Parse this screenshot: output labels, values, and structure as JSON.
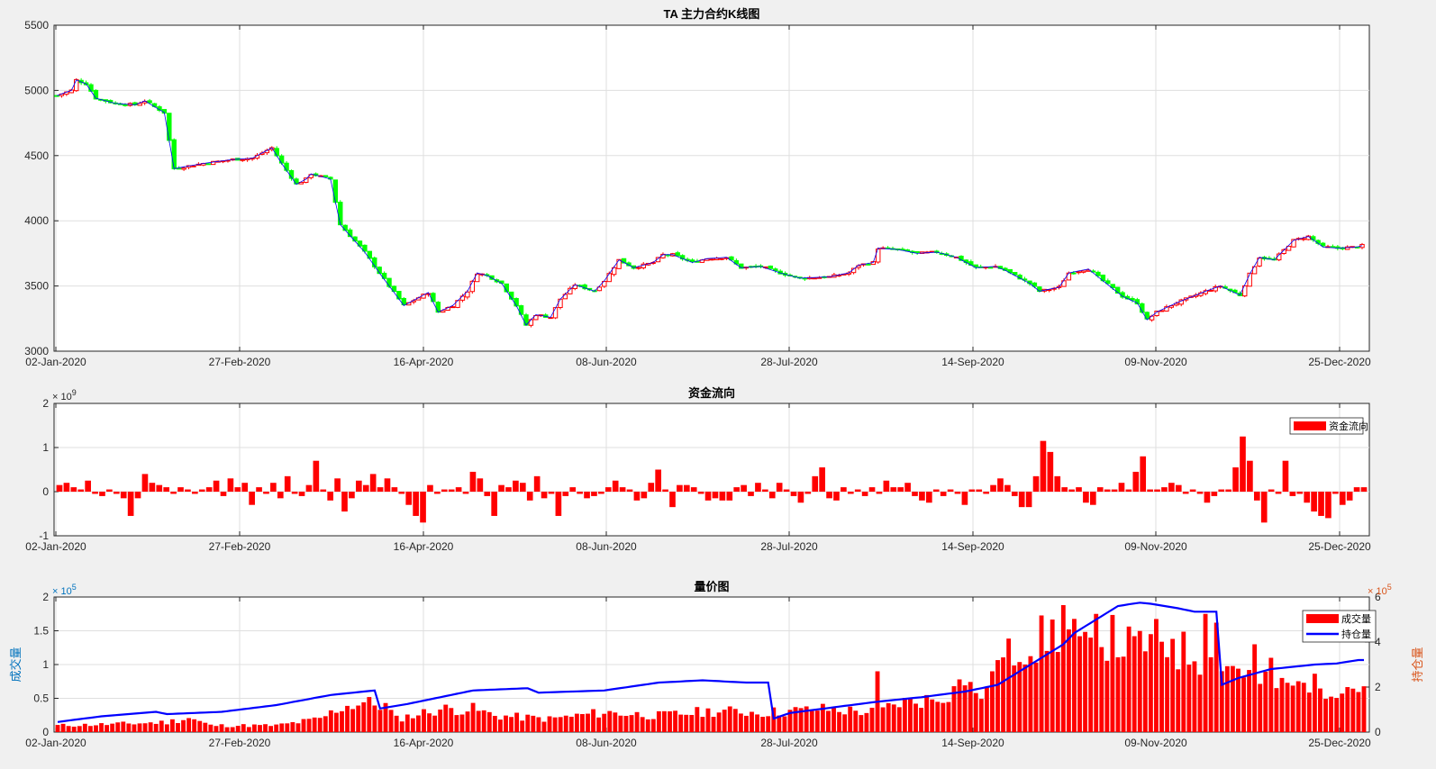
{
  "colors": {
    "up": "#ff0000",
    "down": "#00ff00",
    "flow": "#ff0000",
    "volume": "#ff0000",
    "oi": "#0000ff",
    "left_axis": "#0072bd",
    "right_axis": "#d95319",
    "grid": "#dfdfdf"
  },
  "chart_data": [
    {
      "type": "candlestick",
      "title": "TA 主力合约K线图",
      "ylim": [
        3000,
        5500
      ],
      "yticks": [
        "3000",
        "3500",
        "4000",
        "4500",
        "5000",
        "5500"
      ],
      "xticks": [
        "02-Jan-2020",
        "27-Feb-2020",
        "16-Apr-2020",
        "08-Jun-2020",
        "28-Jul-2020",
        "14-Sep-2020",
        "09-Nov-2020",
        "25-Dec-2020"
      ],
      "xtick_index": [
        0,
        34,
        64,
        94,
        124,
        154,
        184,
        214
      ],
      "n_bars": 238,
      "close_anchors": [
        [
          0,
          4960
        ],
        [
          3,
          5000
        ],
        [
          4,
          5080
        ],
        [
          6,
          5050
        ],
        [
          8,
          4940
        ],
        [
          12,
          4900
        ],
        [
          16,
          4890
        ],
        [
          18,
          4920
        ],
        [
          22,
          4830
        ],
        [
          24,
          4400
        ],
        [
          30,
          4440
        ],
        [
          36,
          4470
        ],
        [
          40,
          4480
        ],
        [
          42,
          4520
        ],
        [
          44,
          4560
        ],
        [
          46,
          4440
        ],
        [
          49,
          4280
        ],
        [
          51,
          4320
        ],
        [
          52,
          4360
        ],
        [
          56,
          4320
        ],
        [
          58,
          3970
        ],
        [
          63,
          3760
        ],
        [
          66,
          3600
        ],
        [
          69,
          3450
        ],
        [
          71,
          3350
        ],
        [
          76,
          3450
        ],
        [
          78,
          3300
        ],
        [
          81,
          3350
        ],
        [
          84,
          3460
        ],
        [
          86,
          3600
        ],
        [
          88,
          3580
        ],
        [
          91,
          3520
        ],
        [
          94,
          3350
        ],
        [
          96,
          3200
        ],
        [
          98,
          3280
        ],
        [
          101,
          3260
        ],
        [
          103,
          3400
        ],
        [
          106,
          3510
        ],
        [
          110,
          3460
        ],
        [
          112,
          3540
        ],
        [
          115,
          3700
        ],
        [
          118,
          3640
        ],
        [
          122,
          3680
        ],
        [
          124,
          3740
        ],
        [
          126,
          3740
        ],
        [
          130,
          3680
        ],
        [
          133,
          3710
        ],
        [
          137,
          3720
        ],
        [
          140,
          3640
        ],
        [
          144,
          3650
        ],
        [
          148,
          3600
        ],
        [
          152,
          3560
        ],
        [
          158,
          3570
        ],
        [
          162,
          3600
        ],
        [
          164,
          3660
        ],
        [
          167,
          3680
        ],
        [
          168,
          3790
        ],
        [
          172,
          3780
        ],
        [
          176,
          3750
        ],
        [
          180,
          3760
        ],
        [
          184,
          3720
        ],
        [
          188,
          3640
        ],
        [
          192,
          3650
        ],
        [
          194,
          3620
        ],
        [
          199,
          3520
        ],
        [
          201,
          3460
        ],
        [
          205,
          3490
        ],
        [
          207,
          3600
        ],
        [
          211,
          3630
        ],
        [
          214,
          3540
        ],
        [
          218,
          3420
        ],
        [
          221,
          3370
        ],
        [
          223,
          3240
        ],
        [
          225,
          3300
        ],
        [
          229,
          3370
        ],
        [
          235,
          3460
        ],
        [
          238,
          3500
        ],
        [
          242,
          3430
        ],
        [
          244,
          3590
        ],
        [
          246,
          3720
        ],
        [
          249,
          3700
        ],
        [
          253,
          3850
        ],
        [
          256,
          3880
        ],
        [
          259,
          3800
        ],
        [
          262,
          3790
        ],
        [
          266,
          3800
        ],
        [
          267,
          3810
        ]
      ],
      "n_bars_scale": 268
    },
    {
      "type": "bar",
      "title": "资金流向",
      "ylim": [
        -1,
        2
      ],
      "yticks": [
        "-1",
        "0",
        "1",
        "2"
      ],
      "exponent_label": "× 10",
      "exponent": "9",
      "unit_scale": 1000000000,
      "legend": [
        "资金流向"
      ],
      "legend_position": "top-right",
      "xticks": [
        "02-Jan-2020",
        "27-Feb-2020",
        "16-Apr-2020",
        "08-Jun-2020",
        "28-Jul-2020",
        "14-Sep-2020",
        "09-Nov-2020",
        "25-Dec-2020"
      ],
      "values": [
        0.15,
        0.2,
        0.1,
        0.05,
        0.25,
        -0.05,
        -0.1,
        0.05,
        -0.05,
        -0.15,
        -0.55,
        -0.15,
        0.4,
        0.2,
        0.15,
        0.1,
        -0.05,
        0.1,
        0.05,
        -0.05,
        0.05,
        0.1,
        0.25,
        -0.1,
        0.3,
        0.1,
        0.2,
        -0.3,
        0.1,
        -0.05,
        0.2,
        -0.15,
        0.35,
        -0.05,
        -0.1,
        0.15,
        0.7,
        0.05,
        -0.2,
        0.3,
        -0.45,
        -0.15,
        0.25,
        0.15,
        0.4,
        0.1,
        0.3,
        0.1,
        -0.05,
        -0.3,
        -0.55,
        -0.7,
        0.15,
        -0.05,
        0.05,
        0.05,
        0.1,
        -0.05,
        0.45,
        0.3,
        -0.1,
        -0.55,
        0.15,
        0.1,
        0.25,
        0.2,
        -0.2,
        0.35,
        -0.15,
        -0.05,
        -0.55,
        -0.1,
        0.1,
        -0.05,
        -0.15,
        -0.1,
        -0.05,
        0.1,
        0.25,
        0.1,
        0.05,
        -0.2,
        -0.15,
        0.2,
        0.5,
        0.05,
        -0.35,
        0.15,
        0.15,
        0.1,
        -0.05,
        -0.2,
        -0.15,
        -0.2,
        -0.2,
        0.1,
        0.15,
        -0.1,
        0.2,
        0.05,
        -0.15,
        0.2,
        0.05,
        -0.1,
        -0.25,
        -0.05,
        0.35,
        0.55,
        -0.15,
        -0.2,
        0.1,
        -0.05,
        0.05,
        -0.1,
        0.1,
        -0.05,
        0.25,
        0.1,
        0.1,
        0.2,
        -0.1,
        -0.2,
        -0.25,
        0.05,
        -0.1,
        0.05,
        -0.05,
        -0.3,
        0.05,
        0.05,
        -0.05,
        0.15,
        0.3,
        0.15,
        -0.1,
        -0.35,
        -0.35,
        0.35,
        1.15,
        0.9,
        0.35,
        0.1,
        0.05,
        0.1,
        -0.25,
        -0.3,
        0.1,
        0.05,
        0.05,
        0.2,
        0.05,
        0.45,
        0.8,
        0.05,
        0.05,
        0.1,
        0.2,
        0.15,
        -0.05,
        0.05,
        -0.05,
        -0.25,
        -0.1,
        0.05,
        0.05,
        0.55,
        1.25,
        0.7,
        -0.2,
        -0.7,
        0.05,
        -0.05,
        0.7,
        -0.1,
        -0.05,
        -0.25,
        -0.45,
        -0.55,
        -0.6,
        -0.05,
        -0.3,
        -0.2,
        0.1,
        0.1
      ]
    },
    {
      "type": "bar+line",
      "title": "量价图",
      "legend": [
        "成交量",
        "持仓量"
      ],
      "legend_position": "top-right",
      "left_ylabel": "成交量",
      "right_ylabel": "持仓量",
      "left_ylim": [
        0,
        2
      ],
      "left_yticks": [
        "0",
        "0.5",
        "1",
        "1.5",
        "2"
      ],
      "right_ylim": [
        0,
        6
      ],
      "right_yticks": [
        "0",
        "2",
        "4",
        "6"
      ],
      "exponent_label": "× 10",
      "exponent": "5",
      "unit_scale": 100000,
      "xticks": [
        "02-Jan-2020",
        "27-Feb-2020",
        "16-Apr-2020",
        "08-Jun-2020",
        "28-Jul-2020",
        "14-Sep-2020",
        "09-Nov-2020",
        "25-Dec-2020"
      ],
      "volume_anchors": [
        [
          0,
          0.1
        ],
        [
          10,
          0.12
        ],
        [
          20,
          0.15
        ],
        [
          24,
          0.22
        ],
        [
          28,
          0.1
        ],
        [
          40,
          0.1
        ],
        [
          48,
          0.2
        ],
        [
          52,
          0.38
        ],
        [
          56,
          0.45
        ],
        [
          60,
          0.4
        ],
        [
          62,
          0.2
        ],
        [
          70,
          0.35
        ],
        [
          76,
          0.35
        ],
        [
          80,
          0.25
        ],
        [
          90,
          0.2
        ],
        [
          100,
          0.3
        ],
        [
          110,
          0.25
        ],
        [
          120,
          0.32
        ],
        [
          130,
          0.3
        ],
        [
          140,
          0.35
        ],
        [
          150,
          0.3
        ],
        [
          154,
          0.45
        ],
        [
          160,
          0.5
        ],
        [
          166,
          0.7
        ],
        [
          170,
          0.55
        ],
        [
          172,
          1.0
        ],
        [
          176,
          1.3
        ],
        [
          180,
          1.4
        ],
        [
          184,
          1.6
        ],
        [
          188,
          1.2
        ],
        [
          192,
          1.45
        ],
        [
          196,
          1.3
        ],
        [
          200,
          1.4
        ],
        [
          204,
          1.25
        ],
        [
          208,
          1.2
        ],
        [
          212,
          1.0
        ],
        [
          216,
          1.0
        ],
        [
          220,
          0.75
        ],
        [
          224,
          0.7
        ],
        [
          228,
          0.7
        ]
      ],
      "volume_peaks": [
        [
          184,
          1.88
        ],
        [
          190,
          1.75
        ],
        [
          200,
          1.45
        ],
        [
          210,
          1.75
        ],
        [
          212,
          1.62
        ],
        [
          197,
          1.42
        ],
        [
          204,
          1.38
        ],
        [
          150,
          0.9
        ],
        [
          165,
          0.78
        ],
        [
          171,
          0.9
        ],
        [
          177,
          1.0
        ],
        [
          219,
          1.3
        ],
        [
          222,
          1.1
        ],
        [
          228,
          0.73
        ]
      ],
      "oi_anchors": [
        [
          0,
          0.45
        ],
        [
          8,
          0.7
        ],
        [
          18,
          0.9
        ],
        [
          20,
          0.8
        ],
        [
          30,
          0.9
        ],
        [
          40,
          1.2
        ],
        [
          50,
          1.65
        ],
        [
          58,
          1.85
        ],
        [
          59,
          1.05
        ],
        [
          64,
          1.25
        ],
        [
          70,
          1.55
        ],
        [
          76,
          1.85
        ],
        [
          86,
          1.95
        ],
        [
          88,
          1.75
        ],
        [
          100,
          1.85
        ],
        [
          110,
          2.2
        ],
        [
          118,
          2.3
        ],
        [
          126,
          2.2
        ],
        [
          130,
          2.2
        ],
        [
          131,
          0.6
        ],
        [
          134,
          0.85
        ],
        [
          142,
          1.1
        ],
        [
          150,
          1.35
        ],
        [
          158,
          1.55
        ],
        [
          166,
          1.8
        ],
        [
          172,
          2.1
        ],
        [
          178,
          3.0
        ],
        [
          184,
          3.9
        ],
        [
          186,
          4.4
        ],
        [
          190,
          5.0
        ],
        [
          194,
          5.6
        ],
        [
          198,
          5.75
        ],
        [
          200,
          5.7
        ],
        [
          205,
          5.5
        ],
        [
          208,
          5.35
        ],
        [
          212,
          5.35
        ],
        [
          213,
          2.1
        ],
        [
          216,
          2.4
        ],
        [
          222,
          2.8
        ],
        [
          230,
          3.0
        ],
        [
          234,
          3.05
        ],
        [
          238,
          3.2
        ],
        [
          240,
          3.2
        ]
      ],
      "n_points": 240
    }
  ]
}
